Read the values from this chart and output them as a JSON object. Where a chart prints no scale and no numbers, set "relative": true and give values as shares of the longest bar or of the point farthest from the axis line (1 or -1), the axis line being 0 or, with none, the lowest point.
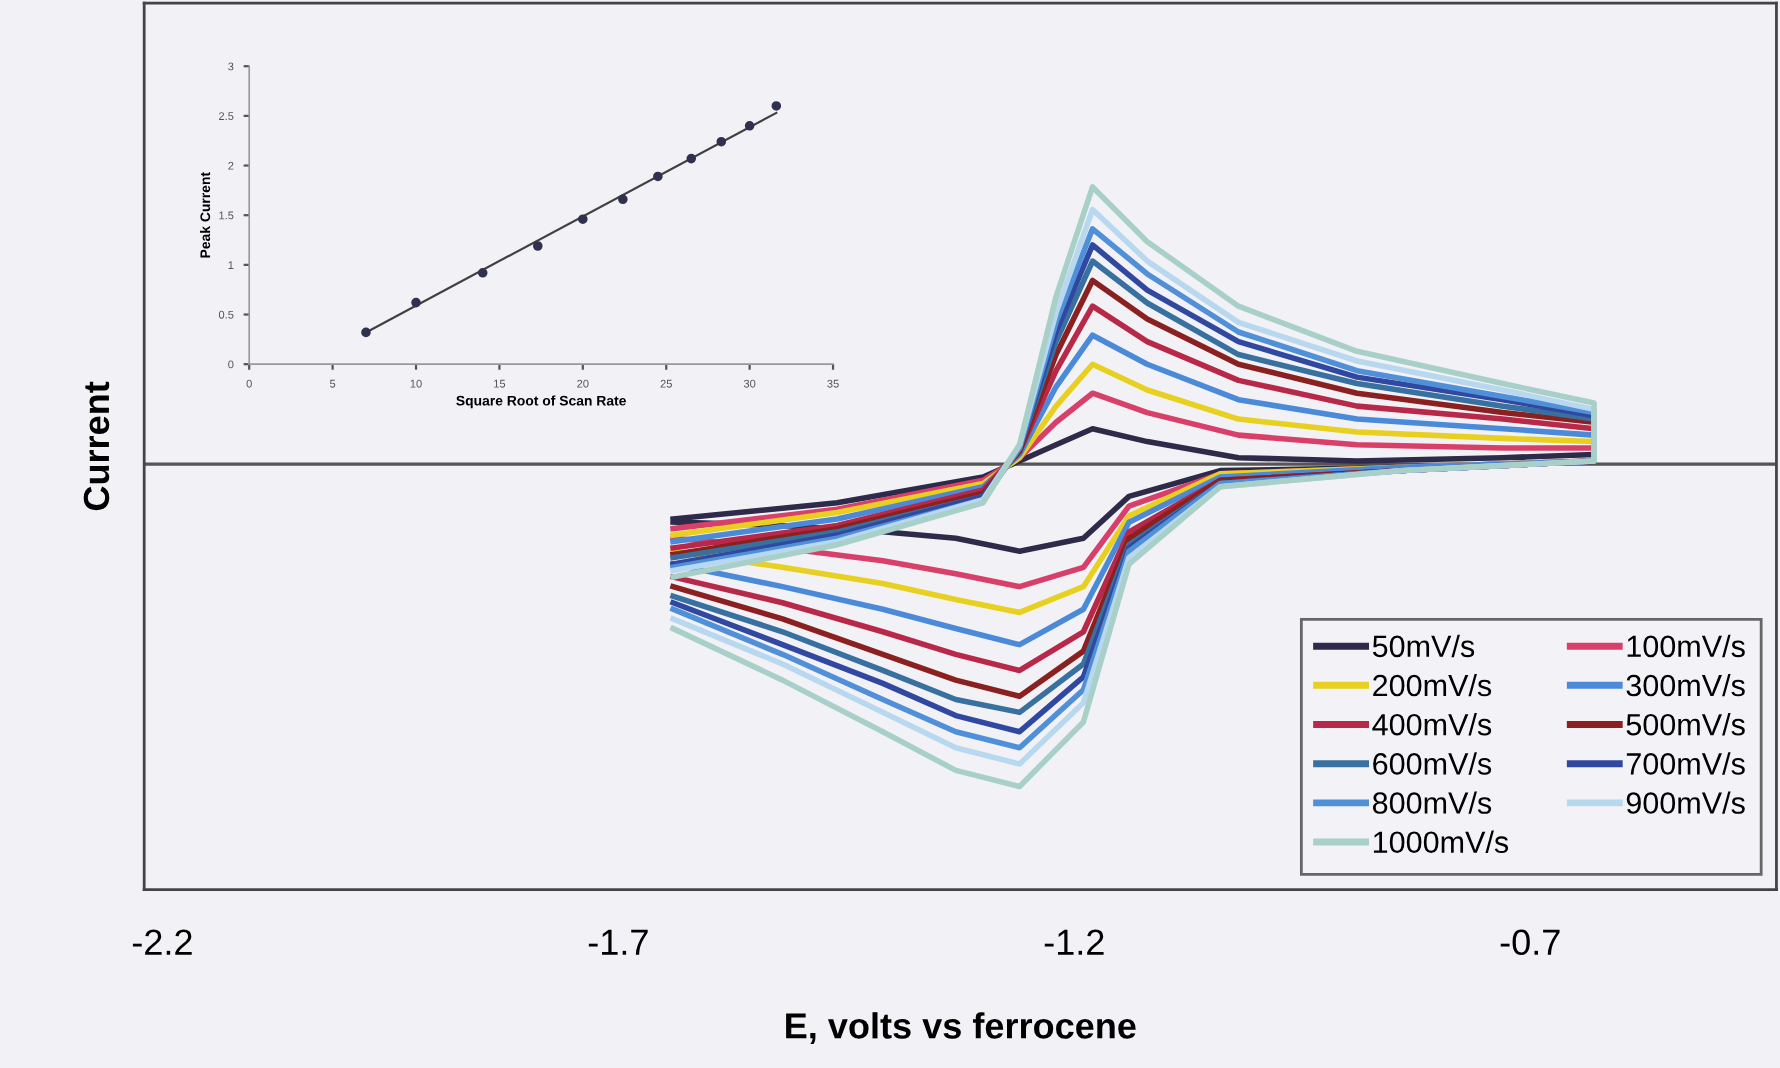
{
  "chart_data": [
    {
      "type": "line",
      "relative": true,
      "xlabel": "E, volts vs ferrocene",
      "ylabel": "Current",
      "xlim": [
        -2.22,
        -0.43
      ],
      "xticks": [
        -2.2,
        -1.7,
        -1.2,
        -0.7
      ],
      "legend": "bottom right",
      "marker": "none",
      "line_style": "solid",
      "grid": false,
      "x": [
        -1.64,
        -1.46,
        -1.3,
        -1.26,
        -1.22,
        -1.18,
        -1.12,
        -1.02,
        -0.89,
        -0.73,
        -0.63,
        -0.63,
        -0.84,
        -1.04,
        -1.14,
        -1.19,
        -1.26,
        -1.33,
        -1.41,
        -1.52,
        -1.64
      ],
      "series": [
        {
          "name": "50mV/s",
          "color": "#2e2a4a",
          "values": [
            -0.17,
            -0.12,
            -0.04,
            0.01,
            0.06,
            0.11,
            0.07,
            0.02,
            0.01,
            0.02,
            0.03,
            0.01,
            -0.01,
            -0.02,
            -0.1,
            -0.23,
            -0.27,
            -0.23,
            -0.21,
            -0.19,
            -0.18
          ]
        },
        {
          "name": "100mV/s",
          "color": "#d8406a",
          "values": [
            -0.2,
            -0.14,
            -0.05,
            0.02,
            0.13,
            0.22,
            0.16,
            0.09,
            0.06,
            0.05,
            0.05,
            0.01,
            -0.01,
            -0.03,
            -0.13,
            -0.32,
            -0.38,
            -0.34,
            -0.3,
            -0.26,
            -0.23
          ]
        },
        {
          "name": "200mV/s",
          "color": "#e8d020",
          "values": [
            -0.22,
            -0.15,
            -0.06,
            0.02,
            0.18,
            0.31,
            0.23,
            0.14,
            0.1,
            0.08,
            0.07,
            0.01,
            -0.01,
            -0.03,
            -0.16,
            -0.38,
            -0.46,
            -0.42,
            -0.37,
            -0.32,
            -0.27
          ]
        },
        {
          "name": "300mV/s",
          "color": "#4a8ad8",
          "values": [
            -0.24,
            -0.17,
            -0.07,
            0.03,
            0.24,
            0.4,
            0.31,
            0.2,
            0.14,
            0.11,
            0.09,
            0.01,
            -0.01,
            -0.04,
            -0.18,
            -0.45,
            -0.56,
            -0.51,
            -0.45,
            -0.38,
            -0.31
          ]
        },
        {
          "name": "400mV/s",
          "color": "#b82848",
          "values": [
            -0.26,
            -0.19,
            -0.08,
            0.04,
            0.29,
            0.49,
            0.38,
            0.26,
            0.18,
            0.14,
            0.11,
            0.01,
            -0.02,
            -0.05,
            -0.21,
            -0.52,
            -0.64,
            -0.59,
            -0.52,
            -0.43,
            -0.35
          ]
        },
        {
          "name": "500mV/s",
          "color": "#8a2020",
          "values": [
            -0.28,
            -0.2,
            -0.09,
            0.04,
            0.34,
            0.57,
            0.45,
            0.31,
            0.22,
            0.16,
            0.13,
            0.01,
            -0.02,
            -0.05,
            -0.23,
            -0.58,
            -0.72,
            -0.67,
            -0.59,
            -0.48,
            -0.38
          ]
        },
        {
          "name": "600mV/s",
          "color": "#3870a0",
          "values": [
            -0.29,
            -0.21,
            -0.1,
            0.05,
            0.38,
            0.63,
            0.5,
            0.34,
            0.25,
            0.18,
            0.14,
            0.01,
            -0.02,
            -0.06,
            -0.25,
            -0.62,
            -0.77,
            -0.73,
            -0.64,
            -0.52,
            -0.41
          ]
        },
        {
          "name": "700mV/s",
          "color": "#3048a0",
          "values": [
            -0.31,
            -0.22,
            -0.1,
            0.05,
            0.41,
            0.68,
            0.54,
            0.38,
            0.27,
            0.2,
            0.15,
            0.01,
            -0.02,
            -0.06,
            -0.26,
            -0.66,
            -0.83,
            -0.78,
            -0.68,
            -0.56,
            -0.43
          ]
        },
        {
          "name": "800mV/s",
          "color": "#5090d8",
          "values": [
            -0.32,
            -0.23,
            -0.11,
            0.05,
            0.44,
            0.73,
            0.59,
            0.41,
            0.29,
            0.21,
            0.16,
            0.01,
            -0.02,
            -0.06,
            -0.27,
            -0.7,
            -0.88,
            -0.83,
            -0.73,
            -0.59,
            -0.45
          ]
        },
        {
          "name": "900mV/s",
          "color": "#b8d8f0",
          "values": [
            -0.33,
            -0.24,
            -0.11,
            0.06,
            0.47,
            0.79,
            0.63,
            0.44,
            0.32,
            0.23,
            0.17,
            0.01,
            -0.02,
            -0.07,
            -0.29,
            -0.74,
            -0.93,
            -0.88,
            -0.77,
            -0.62,
            -0.48
          ]
        },
        {
          "name": "1000mV/s",
          "color": "#a8d0c8",
          "values": [
            -0.35,
            -0.25,
            -0.12,
            0.06,
            0.52,
            0.86,
            0.69,
            0.49,
            0.35,
            0.25,
            0.19,
            0.01,
            -0.02,
            -0.07,
            -0.31,
            -0.8,
            -1.0,
            -0.95,
            -0.83,
            -0.67,
            -0.51
          ]
        }
      ]
    },
    {
      "type": "scatter",
      "xlabel": "Square Root of Scan Rate",
      "ylabel": "Peak Current",
      "xlim": [
        0,
        35
      ],
      "ylim": [
        0,
        3
      ],
      "xticks": [
        0,
        5,
        10,
        15,
        20,
        25,
        30,
        35
      ],
      "yticks": [
        0,
        0.5,
        1,
        1.5,
        2,
        2.5,
        3
      ],
      "grid": false,
      "legend": false,
      "marker": "circle",
      "series": [
        {
          "type": "scatter",
          "color": "#303050",
          "x": [
            7,
            10,
            14,
            17.3,
            20,
            22.4,
            24.5,
            26.5,
            28.3,
            30,
            31.6
          ],
          "values": [
            0.32,
            0.62,
            0.92,
            1.19,
            1.46,
            1.66,
            1.89,
            2.07,
            2.24,
            2.4,
            2.6
          ]
        },
        {
          "type": "line",
          "marker": "none",
          "color": "#404040",
          "x": [
            7,
            31.6
          ],
          "values": [
            0.32,
            2.53
          ]
        }
      ]
    }
  ]
}
